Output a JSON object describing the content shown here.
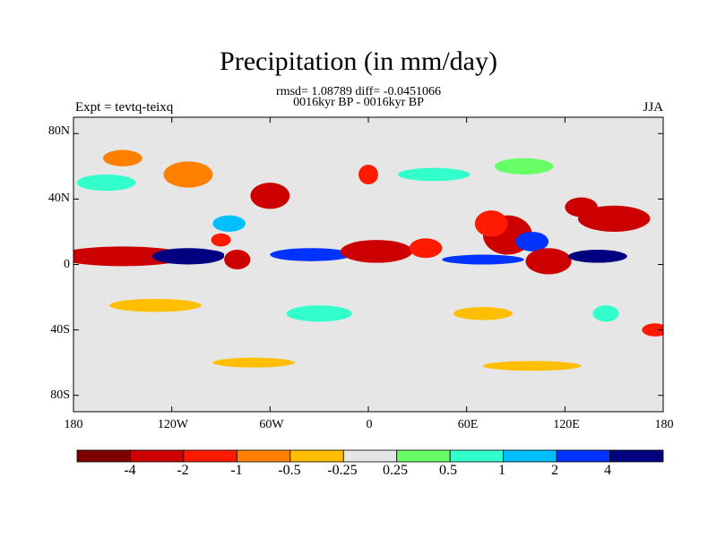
{
  "chart_data": {
    "type": "heatmap",
    "title": "Precipitation (in mm/day)",
    "subtitle_stats": "rmsd= 1.08789 diff= -0.0451066",
    "subtitle_period": "0016kyr BP - 0016kyr BP",
    "left_label": "Expt = tevtq-teixq",
    "right_label": "JJA",
    "x_ticks": [
      "180",
      "120W",
      "60W",
      "0",
      "60E",
      "120E",
      "180"
    ],
    "x_tick_values": [
      -180,
      -120,
      -60,
      0,
      60,
      120,
      180
    ],
    "y_ticks": [
      "80N",
      "40N",
      "0",
      "40S",
      "80S"
    ],
    "y_tick_values": [
      80,
      40,
      0,
      -40,
      -80
    ],
    "xlim": [
      -180,
      180
    ],
    "ylim": [
      -90,
      90
    ],
    "colorbar": {
      "labels": [
        "-4",
        "-2",
        "-1",
        "-0.5",
        "-0.25",
        "0.25",
        "0.5",
        "1",
        "2",
        "4"
      ],
      "levels": [
        -4,
        -2,
        -1,
        -0.5,
        -0.25,
        0.25,
        0.5,
        1,
        2,
        4
      ],
      "colors": [
        "#7f0000",
        "#cc0000",
        "#ff1a00",
        "#ff7f00",
        "#ffbf00",
        "#e6e6e6",
        "#66ff66",
        "#33ffcc",
        "#00bfff",
        "#0033ff",
        "#000080"
      ]
    },
    "regions": [
      {
        "name": "central-pacific-dry-band",
        "lon": -150,
        "lat": 5,
        "rx": 40,
        "ry": 6,
        "value": -3.5
      },
      {
        "name": "east-pacific-wet-band",
        "lon": -110,
        "lat": 5,
        "rx": 22,
        "ry": 5,
        "value": 4.5
      },
      {
        "name": "east-pacific-wet-core",
        "lon": -100,
        "lat": 6,
        "rx": 12,
        "ry": 3,
        "value": 5
      },
      {
        "name": "colombia-dry",
        "lon": -80,
        "lat": 3,
        "rx": 8,
        "ry": 6,
        "value": -3
      },
      {
        "name": "atlantic-itcz-wet",
        "lon": -35,
        "lat": 6,
        "rx": 25,
        "ry": 4,
        "value": 2.5
      },
      {
        "name": "west-africa-dry",
        "lon": 5,
        "lat": 8,
        "rx": 22,
        "ry": 7,
        "value": -3.5
      },
      {
        "name": "east-africa-dry",
        "lon": 35,
        "lat": 10,
        "rx": 10,
        "ry": 6,
        "value": -2
      },
      {
        "name": "indian-ocean-wet-band",
        "lon": 70,
        "lat": 3,
        "rx": 25,
        "ry": 3,
        "value": 2.5
      },
      {
        "name": "bay-of-bengal-dry",
        "lon": 85,
        "lat": 18,
        "rx": 15,
        "ry": 12,
        "value": -3
      },
      {
        "name": "india-dry",
        "lon": 75,
        "lat": 25,
        "rx": 10,
        "ry": 8,
        "value": -2
      },
      {
        "name": "south-china-sea-wet",
        "lon": 100,
        "lat": 14,
        "rx": 10,
        "ry": 6,
        "value": 2
      },
      {
        "name": "maritime-continent-dry",
        "lon": 110,
        "lat": 2,
        "rx": 14,
        "ry": 8,
        "value": -3.5
      },
      {
        "name": "west-pacific-wet",
        "lon": 140,
        "lat": 5,
        "rx": 18,
        "ry": 4,
        "value": 4
      },
      {
        "name": "northwest-pacific-dry",
        "lon": 150,
        "lat": 28,
        "rx": 22,
        "ry": 8,
        "value": -3
      },
      {
        "name": "japan-dry",
        "lon": 130,
        "lat": 35,
        "rx": 10,
        "ry": 6,
        "value": -2.5
      },
      {
        "name": "north-atlantic-dry",
        "lon": -60,
        "lat": 42,
        "rx": 12,
        "ry": 8,
        "value": -2.5
      },
      {
        "name": "gulf-of-mexico-wet",
        "lon": -85,
        "lat": 25,
        "rx": 10,
        "ry": 5,
        "value": 1
      },
      {
        "name": "central-america-dry",
        "lon": -90,
        "lat": 15,
        "rx": 6,
        "ry": 4,
        "value": -1.5
      },
      {
        "name": "europe-dry",
        "lon": 0,
        "lat": 55,
        "rx": 6,
        "ry": 6,
        "value": -2
      },
      {
        "name": "eurasia-wet-band",
        "lon": 40,
        "lat": 55,
        "rx": 22,
        "ry": 4,
        "value": 0.6
      },
      {
        "name": "siberia-wet",
        "lon": 95,
        "lat": 60,
        "rx": 18,
        "ry": 5,
        "value": 0.4
      },
      {
        "name": "alaska-dry",
        "lon": -150,
        "lat": 65,
        "rx": 12,
        "ry": 5,
        "value": -0.8
      },
      {
        "name": "canada-mixed-dry",
        "lon": -110,
        "lat": 55,
        "rx": 15,
        "ry": 8,
        "value": -0.6
      },
      {
        "name": "north-pacific-wet",
        "lon": -160,
        "lat": 50,
        "rx": 18,
        "ry": 5,
        "value": 0.6
      },
      {
        "name": "south-pacific-dry-band",
        "lon": -130,
        "lat": -25,
        "rx": 28,
        "ry": 4,
        "value": -0.5
      },
      {
        "name": "south-atlantic-wet",
        "lon": -30,
        "lat": -30,
        "rx": 20,
        "ry": 5,
        "value": 0.6
      },
      {
        "name": "south-indian-dry",
        "lon": 70,
        "lat": -30,
        "rx": 18,
        "ry": 4,
        "value": -0.4
      },
      {
        "name": "australia-wet",
        "lon": 145,
        "lat": -30,
        "rx": 8,
        "ry": 5,
        "value": 0.6
      },
      {
        "name": "southern-ocean-dry",
        "lon": -70,
        "lat": -60,
        "rx": 25,
        "ry": 3,
        "value": -0.5
      },
      {
        "name": "southern-ocean-east-dry",
        "lon": 100,
        "lat": -62,
        "rx": 30,
        "ry": 3,
        "value": -0.4
      },
      {
        "name": "new-zealand-dry",
        "lon": 175,
        "lat": -40,
        "rx": 8,
        "ry": 4,
        "value": -1.5
      }
    ]
  }
}
